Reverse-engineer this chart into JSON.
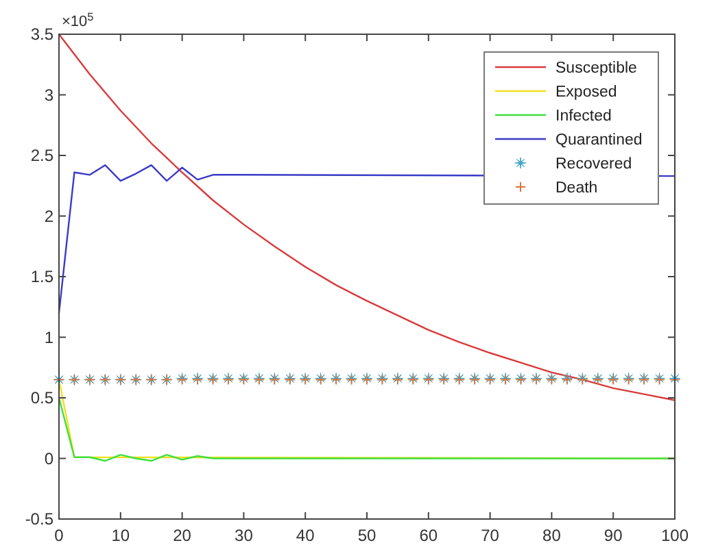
{
  "chart_data": {
    "type": "line",
    "annotations": [
      "×10$^{5}$"
    ],
    "xlim": [
      0,
      100
    ],
    "xticks": [
      0,
      10,
      20,
      30,
      40,
      50,
      60,
      70,
      80,
      90,
      100
    ],
    "ylim": [
      -0.5,
      3.5
    ],
    "yticks": [
      -0.5,
      0,
      0.5,
      1,
      1.5,
      2,
      2.5,
      3,
      3.5
    ],
    "grid": false,
    "legend": "top right",
    "marker": "none",
    "line_style": "solid",
    "series": [
      {
        "name": "Susceptible",
        "color": "#d93a3a",
        "x": [
          0,
          5,
          10,
          15,
          20,
          25,
          30,
          35,
          40,
          45,
          50,
          55,
          60,
          65,
          70,
          75,
          80,
          85,
          90,
          95,
          100
        ],
        "values": [
          3.5,
          3.17,
          2.87,
          2.6,
          2.36,
          2.13,
          1.93,
          1.75,
          1.58,
          1.43,
          1.3,
          1.18,
          1.06,
          0.96,
          0.87,
          0.79,
          0.71,
          0.65,
          0.58,
          0.53,
          0.48
        ]
      },
      {
        "name": "Exposed",
        "color": "#f0e020",
        "x": [
          0,
          2.5,
          100
        ],
        "values": [
          0.65,
          0.01,
          0
        ]
      },
      {
        "name": "Infected",
        "color": "#40e040",
        "x": [
          0,
          2.5,
          5,
          7.5,
          10,
          12.5,
          15,
          17.5,
          20,
          22.5,
          25,
          100
        ],
        "values": [
          0.5,
          0.01,
          0.01,
          -0.02,
          0.03,
          0,
          -0.02,
          0.03,
          -0.01,
          0.02,
          0,
          0
        ]
      },
      {
        "name": "Quarantined",
        "color": "#3a3ac8",
        "x": [
          0,
          2.5,
          5,
          7.5,
          10,
          12.5,
          15,
          17.5,
          20,
          22.5,
          25,
          30,
          100
        ],
        "values": [
          1.2,
          2.36,
          2.34,
          2.42,
          2.29,
          2.35,
          2.42,
          2.29,
          2.4,
          2.3,
          2.34,
          2.34,
          2.33
        ]
      },
      {
        "name": "Recovered",
        "color": "#3ba3c8",
        "type": "scatter",
        "marker": "star",
        "x": [
          0,
          2.5,
          5,
          7.5,
          10,
          12.5,
          15,
          17.5,
          20,
          22.5,
          25,
          27.5,
          30,
          32.5,
          35,
          37.5,
          40,
          42.5,
          45,
          47.5,
          50,
          52.5,
          55,
          57.5,
          60,
          62.5,
          65,
          67.5,
          70,
          72.5,
          75,
          77.5,
          80,
          82.5,
          85,
          87.5,
          90,
          92.5,
          95,
          97.5,
          100
        ],
        "values": [
          0.65,
          0.65,
          0.65,
          0.65,
          0.65,
          0.65,
          0.65,
          0.65,
          0.66,
          0.66,
          0.66,
          0.66,
          0.66,
          0.66,
          0.66,
          0.66,
          0.66,
          0.66,
          0.66,
          0.66,
          0.66,
          0.66,
          0.66,
          0.66,
          0.66,
          0.66,
          0.66,
          0.66,
          0.66,
          0.66,
          0.66,
          0.66,
          0.66,
          0.66,
          0.66,
          0.66,
          0.66,
          0.66,
          0.66,
          0.66,
          0.66
        ]
      },
      {
        "name": "Death",
        "color": "#d9753a",
        "type": "scatter",
        "marker": "cross",
        "x": [
          0,
          2.5,
          5,
          7.5,
          10,
          12.5,
          15,
          17.5,
          20,
          22.5,
          25,
          27.5,
          30,
          32.5,
          35,
          37.5,
          40,
          42.5,
          45,
          47.5,
          50,
          52.5,
          55,
          57.5,
          60,
          62.5,
          65,
          67.5,
          70,
          72.5,
          75,
          77.5,
          80,
          82.5,
          85,
          87.5,
          90,
          92.5,
          95,
          97.5,
          100
        ],
        "values": [
          0.65,
          0.65,
          0.65,
          0.65,
          0.65,
          0.65,
          0.65,
          0.65,
          0.65,
          0.65,
          0.65,
          0.65,
          0.65,
          0.65,
          0.65,
          0.65,
          0.65,
          0.65,
          0.65,
          0.65,
          0.65,
          0.65,
          0.65,
          0.65,
          0.65,
          0.65,
          0.65,
          0.65,
          0.65,
          0.65,
          0.65,
          0.65,
          0.65,
          0.65,
          0.65,
          0.65,
          0.65,
          0.65,
          0.65,
          0.65,
          0.65
        ]
      }
    ]
  }
}
